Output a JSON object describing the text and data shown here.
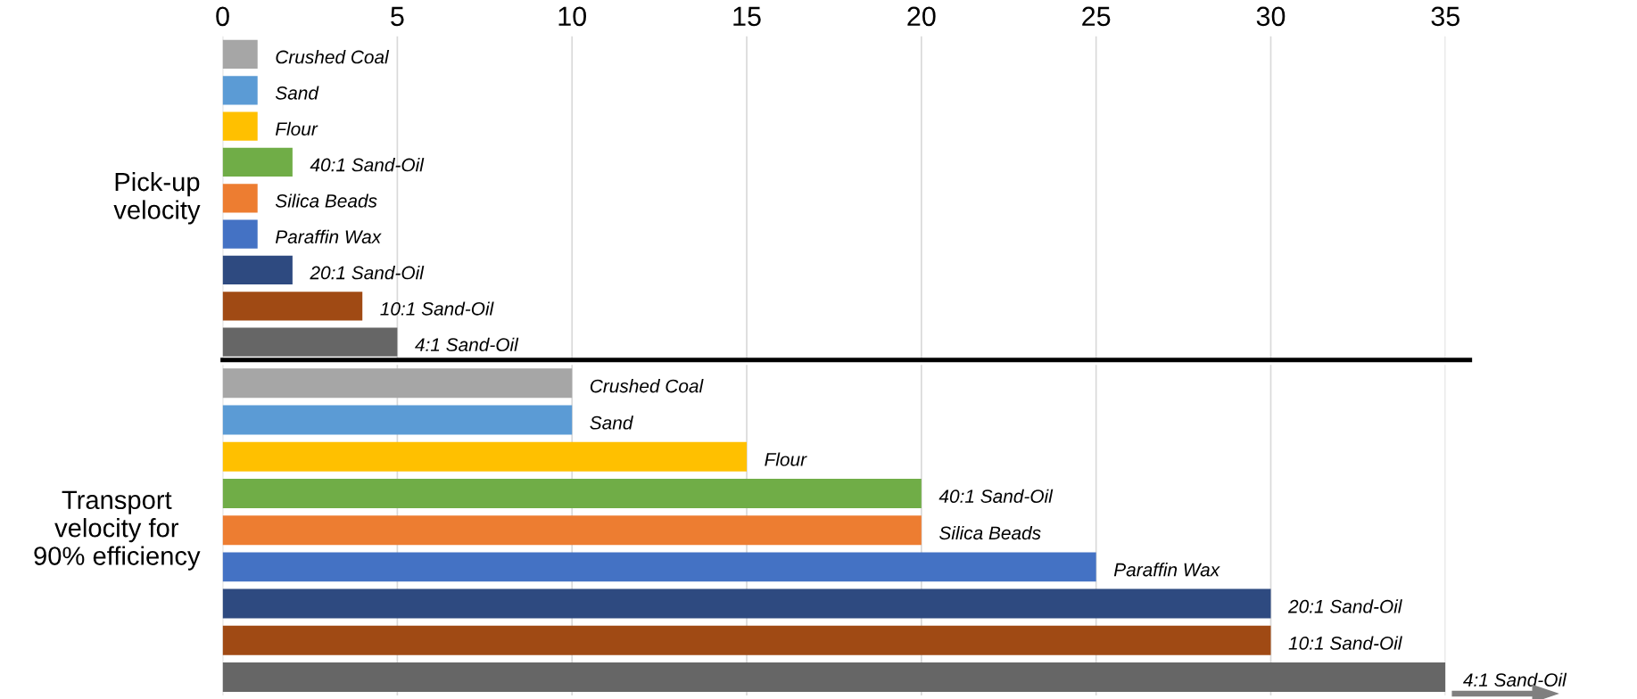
{
  "chart_data": [
    {
      "type": "bar",
      "orientation": "horizontal",
      "ylabel": "Pick-up\nvelocity",
      "categories": [
        "Crushed Coal",
        "Sand",
        "Flour",
        "40:1 Sand-Oil",
        "Silica Beads",
        "Paraffin Wax",
        "20:1 Sand-Oil",
        "10:1 Sand-Oil",
        "4:1 Sand-Oil"
      ],
      "values": [
        1,
        1,
        1,
        2,
        1,
        1,
        2,
        4,
        5
      ],
      "colors": [
        "#a6a6a6",
        "#5b9bd5",
        "#ffc000",
        "#70ad47",
        "#ed7d31",
        "#4472c4",
        "#2e4a80",
        "#a04a14",
        "#666666"
      ],
      "xlim": [
        0,
        35
      ],
      "xticks": [
        0,
        5,
        10,
        15,
        20,
        25,
        30,
        35
      ],
      "grid": "x",
      "tick_labels": "x"
    },
    {
      "type": "bar",
      "orientation": "horizontal",
      "ylabel": "Transport\nvelocity for\n90% efficiency",
      "categories": [
        "Crushed Coal",
        "Sand",
        "Flour",
        "40:1 Sand-Oil",
        "Silica Beads",
        "Paraffin Wax",
        "20:1 Sand-Oil",
        "10:1 Sand-Oil",
        "4:1 Sand-Oil"
      ],
      "values": [
        10,
        10,
        15,
        20,
        20,
        25,
        30,
        30,
        35
      ],
      "colors": [
        "#a6a6a6",
        "#5b9bd5",
        "#ffc000",
        "#70ad47",
        "#ed7d31",
        "#4472c4",
        "#2e4a80",
        "#a04a14",
        "#666666"
      ],
      "xlim": [
        0,
        35
      ],
      "xticks": [
        0,
        5,
        10,
        15,
        20,
        25,
        30,
        35
      ],
      "grid": "x",
      "tick_labels": false
    }
  ]
}
